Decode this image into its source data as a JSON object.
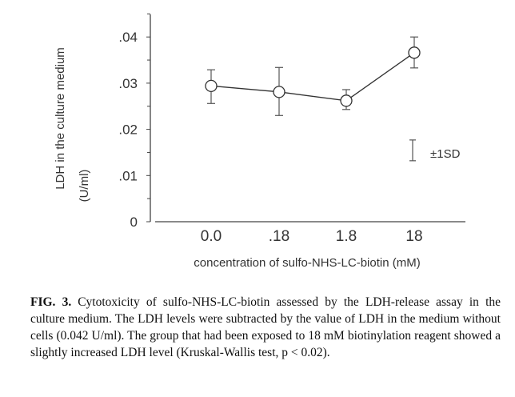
{
  "chart_data": {
    "type": "line",
    "title": "",
    "xlabel": "concentration of sulfo-NHS-LC-biotin (mM)",
    "ylabel_line1": "LDH in the culture medium",
    "ylabel_line2": "(U/ml)",
    "categories": [
      "0.0",
      ".18",
      "1.8",
      "18"
    ],
    "series": [
      {
        "name": "LDH",
        "values": [
          0.0294,
          0.0281,
          0.0262,
          0.0366
        ],
        "err_high": [
          0.0329,
          0.0334,
          0.0286,
          0.04
        ],
        "err_low": [
          0.0256,
          0.023,
          0.0243,
          0.0333
        ]
      }
    ],
    "ylim": [
      0,
      0.045
    ],
    "yticks": [
      0,
      0.01,
      0.02,
      0.03,
      0.04
    ],
    "ytick_labels": [
      "0",
      ".01",
      ".02",
      ".03",
      ".04"
    ],
    "legend": {
      "label": "±1SD",
      "placement": "right",
      "sd_range": [
        0.0132,
        0.0177
      ]
    },
    "grid": false
  },
  "caption": {
    "label": "FIG. 3.",
    "text": "Cytotoxicity of sulfo-NHS-LC-biotin assessed by the LDH-release assay in the culture medium. The LDH levels were subtracted by the value of LDH in the medium without cells (0.042 U/ml). The group that had been exposed to 18 mM biotinylation reagent showed a slightly increased LDH level (Kruskal-Wallis test, p < 0.02)."
  }
}
